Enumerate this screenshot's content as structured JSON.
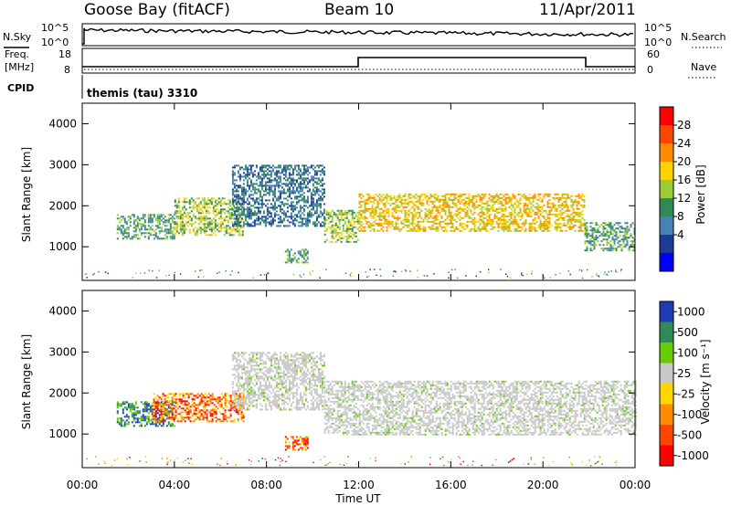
{
  "header": {
    "station": "Goose Bay (fitACF)",
    "beam": "Beam 10",
    "date": "11/Apr/2011"
  },
  "panels": {
    "nsky_label": "N.Sky",
    "nsky_ticks": [
      "10^5",
      "10^0"
    ],
    "nsearch_label": "N.Search",
    "nsearch_ticks": [
      "10^5",
      "10^0"
    ],
    "freq_label_1": "Freq.",
    "freq_label_2": "[MHz]",
    "freq_ticks": [
      "18",
      "8"
    ],
    "nave_label": "Nave",
    "nave_ticks": [
      "60",
      "0"
    ],
    "cpid_label": "CPID",
    "cpid_text": "themis (tau) 3310"
  },
  "power_colorbar": {
    "label": "Power [dB]",
    "ticks": [
      "28",
      "24",
      "20",
      "16",
      "12",
      "8",
      "4"
    ],
    "colors": [
      "#ff0000",
      "#ff4500",
      "#ff8c00",
      "#ffd200",
      "#9acd32",
      "#2e8b57",
      "#4682b4",
      "#1e3c96",
      "#0000ff"
    ]
  },
  "velocity_colorbar": {
    "label": "Velocity [m s⁻¹]",
    "ticks": [
      "1000",
      "500",
      "100",
      "25",
      "-25",
      "-100",
      "-500",
      "-1000"
    ],
    "colors": [
      "#1e3cb4",
      "#2e8b57",
      "#66cd00",
      "#c8c8c8",
      "#ffd700",
      "#ff8c00",
      "#ff4500",
      "#ff0000"
    ]
  },
  "chart_data": {
    "type": "heatmap",
    "xlabel": "Time UT",
    "ylabel": "Slant Range [km]",
    "x_ticks": [
      "00:00",
      "04:00",
      "08:00",
      "12:00",
      "16:00",
      "20:00",
      "00:00"
    ],
    "y_ticks": [
      "1000",
      "2000",
      "3000",
      "4000"
    ],
    "xlim_hours": [
      0,
      24
    ],
    "ylim_km": [
      180,
      4500
    ],
    "grid": false,
    "power_panel": {
      "colorbar": "Power [dB]",
      "echo_regions": [
        {
          "t_start": 1.5,
          "t_end": 4.0,
          "r_min": 1200,
          "r_max": 1800,
          "power_db": 12
        },
        {
          "t_start": 4.0,
          "t_end": 7.0,
          "r_min": 1300,
          "r_max": 2200,
          "power_db": 16
        },
        {
          "t_start": 6.5,
          "t_end": 10.5,
          "r_min": 1500,
          "r_max": 3000,
          "power_db": 8
        },
        {
          "t_start": 8.8,
          "t_end": 9.8,
          "r_min": 600,
          "r_max": 950,
          "power_db": 10
        },
        {
          "t_start": 10.5,
          "t_end": 12.0,
          "r_min": 1100,
          "r_max": 1900,
          "power_db": 14
        },
        {
          "t_start": 12.0,
          "t_end": 21.8,
          "r_min": 1400,
          "r_max": 2300,
          "power_db": 20
        },
        {
          "t_start": 21.8,
          "t_end": 24.0,
          "r_min": 900,
          "r_max": 1600,
          "power_db": 12
        }
      ]
    },
    "velocity_panel": {
      "colorbar": "Velocity [m s⁻¹]",
      "echo_regions": [
        {
          "t_start": 1.5,
          "t_end": 4.0,
          "r_min": 1200,
          "r_max": 1800,
          "velocity_ms": 100
        },
        {
          "t_start": 3.0,
          "t_end": 7.0,
          "r_min": 1300,
          "r_max": 2000,
          "velocity_ms": -500
        },
        {
          "t_start": 6.5,
          "t_end": 10.5,
          "r_min": 1600,
          "r_max": 3000,
          "velocity_ms": 0
        },
        {
          "t_start": 8.8,
          "t_end": 9.8,
          "r_min": 600,
          "r_max": 950,
          "velocity_ms": -100
        },
        {
          "t_start": 10.5,
          "t_end": 24.0,
          "r_min": 1000,
          "r_max": 2300,
          "velocity_ms": 0
        }
      ]
    }
  }
}
